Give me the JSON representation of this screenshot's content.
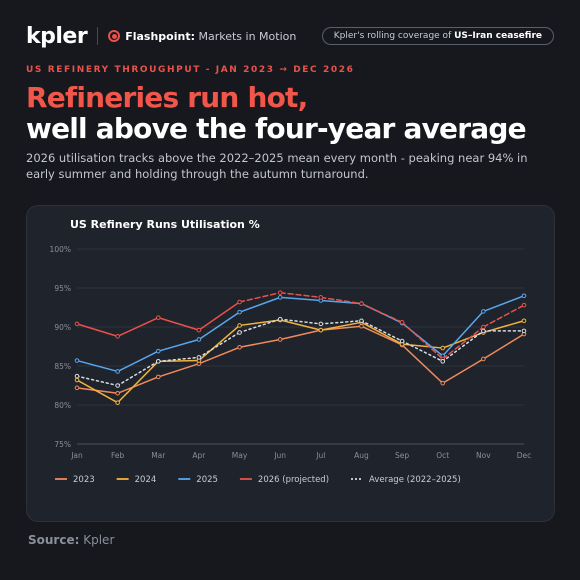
{
  "header": {
    "logo": "kpler",
    "section_bold": "Flashpoint:",
    "section": "Markets in Motion",
    "pill_text": "Kpler's rolling coverage of",
    "pill_bold": "US–Iran ceasefire"
  },
  "kicker": "US REFINERY THROUGHPUT - JAN 2023 → DEC 2026",
  "headline": [
    "Refineries run hot,",
    "well above the four-year average"
  ],
  "subtitle": "2026 utilisation tracks above the 2022–2025 mean every month - peaking near 94% in early summer and holding through the autumn turnaround.",
  "chart_data": {
    "type": "line",
    "title": "US Refinery Runs Utilisation %",
    "categories": [
      "Jan",
      "Feb",
      "Mar",
      "Apr",
      "May",
      "Jun",
      "Jul",
      "Aug",
      "Sep",
      "Oct",
      "Nov",
      "Dec"
    ],
    "series": [
      {
        "name": "2023",
        "color": "#f08a5d",
        "values": [
          82.2,
          81.5,
          83.6,
          85.3,
          87.4,
          88.4,
          89.6,
          90.1,
          87.7,
          82.8,
          85.9,
          89.1
        ]
      },
      {
        "name": "2024",
        "color": "#f2b33d",
        "values": [
          83.2,
          80.3,
          85.6,
          85.7,
          90.2,
          90.9,
          89.6,
          90.6,
          87.8,
          87.3,
          89.3,
          90.8
        ]
      },
      {
        "name": "2025",
        "color": "#5aa6ee",
        "values": [
          85.7,
          84.3,
          86.9,
          88.4,
          91.9,
          93.8,
          93.4,
          93.0,
          90.5,
          86.3,
          92.0,
          94.0
        ]
      },
      {
        "name": "2026 (projected)",
        "color": "#e8524a",
        "dashed_after": "May",
        "values": [
          90.4,
          88.8,
          91.2,
          89.6,
          93.2,
          94.4,
          93.8,
          93.0,
          90.6,
          85.9,
          90.0,
          92.8
        ]
      },
      {
        "name": "Average (2022–2025)",
        "color": "#d8dbe0",
        "style": "dotted",
        "values": [
          83.7,
          82.5,
          85.6,
          86.1,
          89.3,
          91.0,
          90.4,
          90.8,
          88.2,
          85.6,
          89.5,
          89.5
        ]
      }
    ],
    "ylim": [
      75,
      100
    ],
    "yticks": [
      {
        "value": 75,
        "label": "75%"
      },
      {
        "value": 80,
        "label": "80%"
      },
      {
        "value": 85,
        "label": "85%"
      },
      {
        "value": 90,
        "label": "90%"
      },
      {
        "value": 95,
        "label": "95%"
      },
      {
        "value": 100,
        "label": "100%"
      }
    ],
    "grid": true,
    "legend": "bottom"
  },
  "source": {
    "label": "Source:",
    "name": "Kpler"
  }
}
